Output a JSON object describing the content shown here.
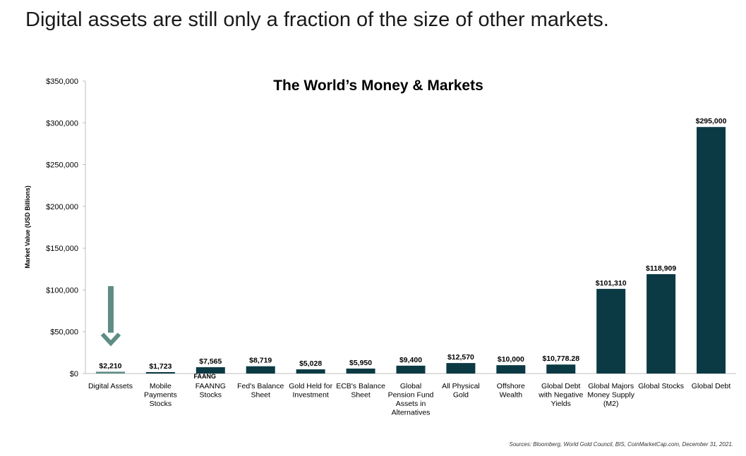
{
  "page": {
    "headline": "Digital assets are still only a fraction of the size of other markets.",
    "source": "Sources: Bloomberg, World Gold Council, BIS, CoinMarketCap.com, December 31, 2021."
  },
  "chart_data": {
    "type": "bar",
    "title": "The World’s Money & Markets",
    "ylabel": "Market Value (USD Billions)",
    "xlabel": "",
    "ylim": [
      0,
      350000
    ],
    "yticks": [
      "$0",
      "$50,000",
      "$100,000",
      "$150,000",
      "$200,000",
      "$250,000",
      "$300,000",
      "$350,000"
    ],
    "grid": false,
    "categories": [
      "Digital Assets",
      "Mobile Payments Stocks",
      "FAANNG Stocks",
      "Fed's Balance Sheet",
      "Gold Held for Investment",
      "ECB's Balance Sheet",
      "Global Pension Fund Assets in Alternatives",
      "All Physical Gold",
      "Offshore Wealth",
      "Global Debt with Negative Yields",
      "Global Majors Money Supply (M2)",
      "Global Stocks",
      "Global Debt"
    ],
    "category_lines": [
      [
        "Digital Assets"
      ],
      [
        "Mobile",
        "Payments",
        "Stocks"
      ],
      [
        "FAANNG",
        "Stocks"
      ],
      [
        "Fed's Balance",
        "Sheet"
      ],
      [
        "Gold Held for",
        "Investment"
      ],
      [
        "ECB's Balance",
        "Sheet"
      ],
      [
        "Global",
        "Pension Fund",
        "Assets in",
        "Alternatives"
      ],
      [
        "All Physical",
        "Gold"
      ],
      [
        "Offshore",
        "Wealth"
      ],
      [
        "Global Debt",
        "with Negative",
        "Yields"
      ],
      [
        "Global Majors",
        "Money Supply",
        "(M2)"
      ],
      [
        "Global Stocks"
      ],
      [
        "Global Debt"
      ]
    ],
    "values": [
      2210,
      1723,
      7565,
      8719,
      5028,
      5950,
      9400,
      12570,
      10000,
      10778.28,
      101310,
      118909,
      295000
    ],
    "data_labels": [
      "$2,210",
      "$1,723",
      "$7,565",
      "$8,719",
      "$5,028",
      "$5,950",
      "$9,400",
      "$12,570",
      "$10,000",
      "$10,778.28",
      "$101,310",
      "$118,909",
      "$295,000"
    ],
    "annotations": [
      {
        "text": "FAANG",
        "category": "FAANNG Stocks"
      }
    ],
    "highlight": {
      "category": "Digital Assets",
      "marker": "down-arrow-icon"
    },
    "colors": {
      "bar": "#0b3a44",
      "highlight_bar": "#5f8d85",
      "arrow": "#5f8d85",
      "axis": "#bfbfbf"
    }
  }
}
